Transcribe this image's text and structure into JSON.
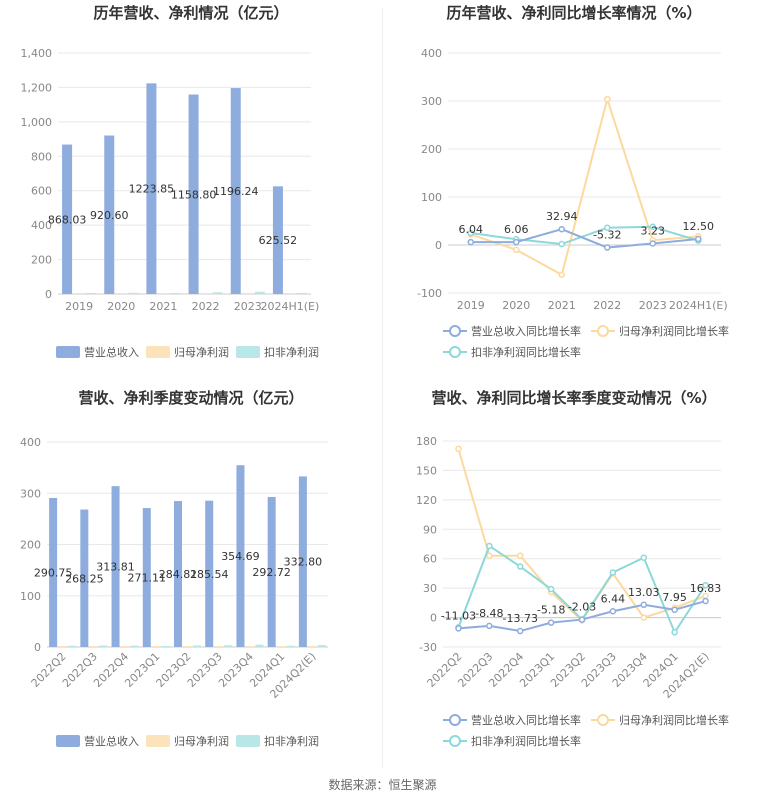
{
  "colors": {
    "revenue": "#8EACDD",
    "parent_profit": "#FCE3BC",
    "deducted_profit": "#B9E6E6",
    "revenue_line": "#8EACDD",
    "parent_line": "#FCD99E",
    "deducted_line": "#8DD8DA",
    "grid": "#e8e8e8",
    "axis": "#cccccc"
  },
  "footer": {
    "source": "数据来源：恒生聚源"
  },
  "chart_data": [
    {
      "type": "bar",
      "title": "历年营收、净利情况（亿元）",
      "categories": [
        "2019",
        "2020",
        "2021",
        "2022",
        "2023",
        "2024H1(E)"
      ],
      "ylim": [
        0,
        1400
      ],
      "yticks": [
        0,
        200,
        400,
        600,
        800,
        "1,000",
        "1,200",
        "1,400"
      ],
      "series": [
        {
          "name": "营业总收入",
          "values": [
            868.03,
            920.6,
            1223.85,
            1158.8,
            1196.24,
            625.52
          ],
          "labels": [
            "868.03",
            "920.60",
            "1223.85",
            "1158.80",
            "1196.24",
            "625.52"
          ]
        },
        {
          "name": "归母净利润",
          "values": [
            4,
            4,
            4,
            6,
            7,
            3
          ]
        },
        {
          "name": "扣非净利润",
          "values": [
            5,
            7,
            6,
            10,
            13,
            5
          ]
        }
      ],
      "legend": "bottom"
    },
    {
      "type": "line",
      "title": "历年营收、净利同比增长率情况（%）",
      "categories": [
        "2019",
        "2020",
        "2021",
        "2022",
        "2023",
        "2024H1(E)"
      ],
      "ylim": [
        -100,
        400
      ],
      "yticks": [
        "-100",
        "0",
        "100",
        "200",
        "300",
        "400"
      ],
      "series": [
        {
          "name": "营业总收入同比增长率",
          "values": [
            6.04,
            6.06,
            32.94,
            -5.32,
            3.23,
            12.5
          ],
          "labels": [
            "6.04",
            "6.06",
            "32.94",
            "-5.32",
            "3.23",
            "12.50"
          ]
        },
        {
          "name": "归母净利润同比增长率",
          "values": [
            22,
            -10,
            -62,
            304,
            10,
            18
          ]
        },
        {
          "name": "扣非净利润同比增长率",
          "values": [
            25,
            12,
            2,
            36,
            38,
            9
          ]
        }
      ],
      "legend": "bottom"
    },
    {
      "type": "bar",
      "title": "营收、净利季度变动情况（亿元）",
      "categories": [
        "2022Q2",
        "2022Q3",
        "2022Q4",
        "2023Q1",
        "2023Q2",
        "2023Q3",
        "2023Q4",
        "2024Q1",
        "2024Q2(E)"
      ],
      "ylim": [
        0,
        400
      ],
      "yticks": [
        "0",
        "100",
        "200",
        "300",
        "400"
      ],
      "series": [
        {
          "name": "营业总收入",
          "values": [
            290.75,
            268.25,
            313.81,
            271.11,
            284.81,
            285.54,
            354.69,
            292.72,
            332.8
          ],
          "labels": [
            "290.75",
            "268.25",
            "313.81",
            "271.11",
            "284.81",
            "285.54",
            "354.69",
            "292.72",
            "332.80"
          ]
        },
        {
          "name": "归母净利润",
          "values": [
            1.5,
            1.3,
            1.8,
            1.2,
            1.6,
            1.9,
            2.0,
            1.4,
            2.2
          ]
        },
        {
          "name": "扣非净利润",
          "values": [
            2.5,
            3.0,
            2.8,
            2.0,
            3.0,
            3.5,
            4.5,
            2.5,
            3.8
          ]
        }
      ],
      "legend": "bottom"
    },
    {
      "type": "line",
      "title": "营收、净利同比增长率季度变动情况（%）",
      "categories": [
        "2022Q2",
        "2022Q3",
        "2022Q4",
        "2023Q1",
        "2023Q2",
        "2023Q3",
        "2023Q4",
        "2024Q1",
        "2024Q2(E)"
      ],
      "ylim": [
        -30,
        180
      ],
      "yticks": [
        "-30",
        "0",
        "30",
        "60",
        "90",
        "120",
        "150",
        "180"
      ],
      "series": [
        {
          "name": "营业总收入同比增长率",
          "values": [
            -11.03,
            -8.48,
            -13.73,
            -5.18,
            -2.03,
            6.44,
            13.03,
            7.95,
            16.83
          ],
          "labels": [
            "-11.03",
            "-8.48",
            "-13.73",
            "-5.18",
            "-2.03",
            "6.44",
            "13.03",
            "7.95",
            "16.83"
          ]
        },
        {
          "name": "归母净利润同比增长率",
          "values": [
            172,
            63,
            63,
            26,
            -3,
            45,
            0,
            10,
            22
          ]
        },
        {
          "name": "扣非净利润同比增长率",
          "values": [
            -10,
            73,
            52,
            29,
            -2,
            46,
            61,
            -15,
            33
          ]
        }
      ],
      "legend": "bottom"
    }
  ]
}
